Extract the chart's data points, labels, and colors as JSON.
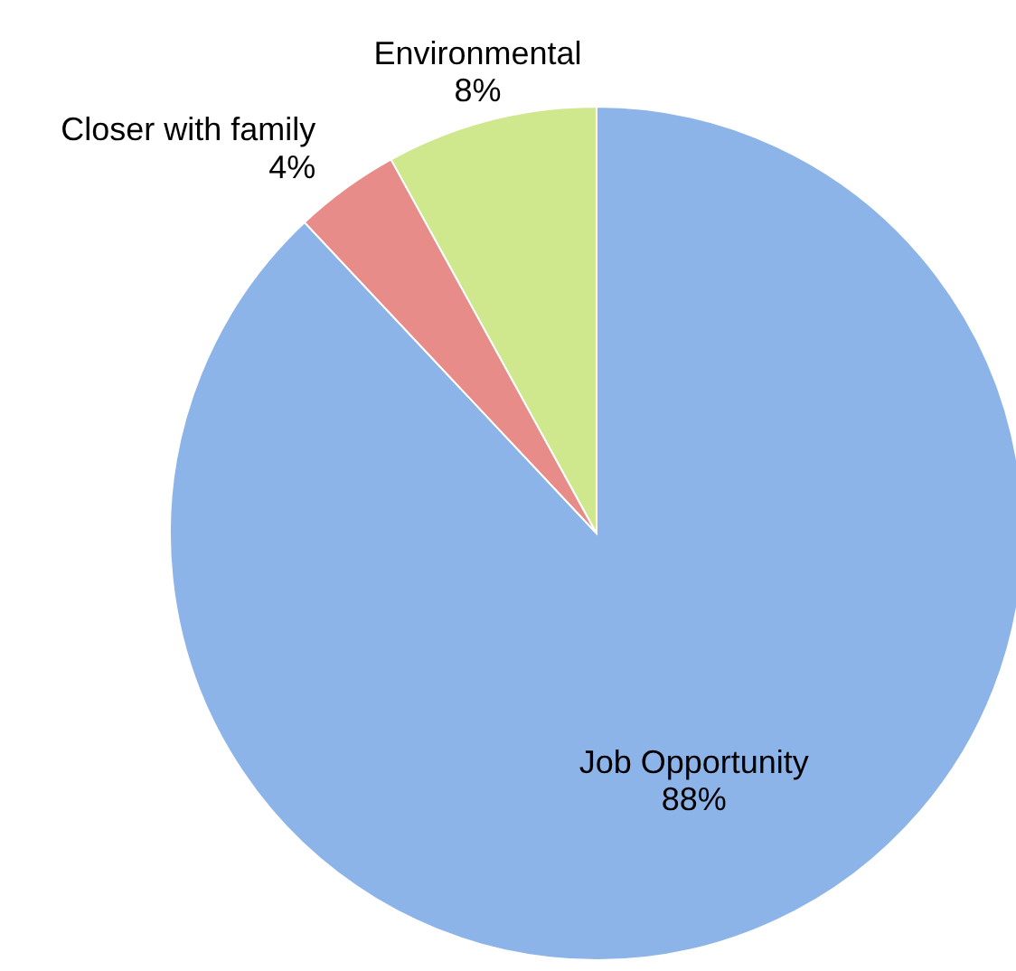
{
  "chart_data": {
    "type": "pie",
    "categories": [
      "Job Opportunity",
      "Closer with family",
      "Environmental"
    ],
    "values": [
      88,
      4,
      8
    ],
    "colors": [
      "#8db4e8",
      "#e88c8a",
      "#cfe88e"
    ],
    "value_labels": [
      "88%",
      "4%",
      "8%"
    ]
  }
}
